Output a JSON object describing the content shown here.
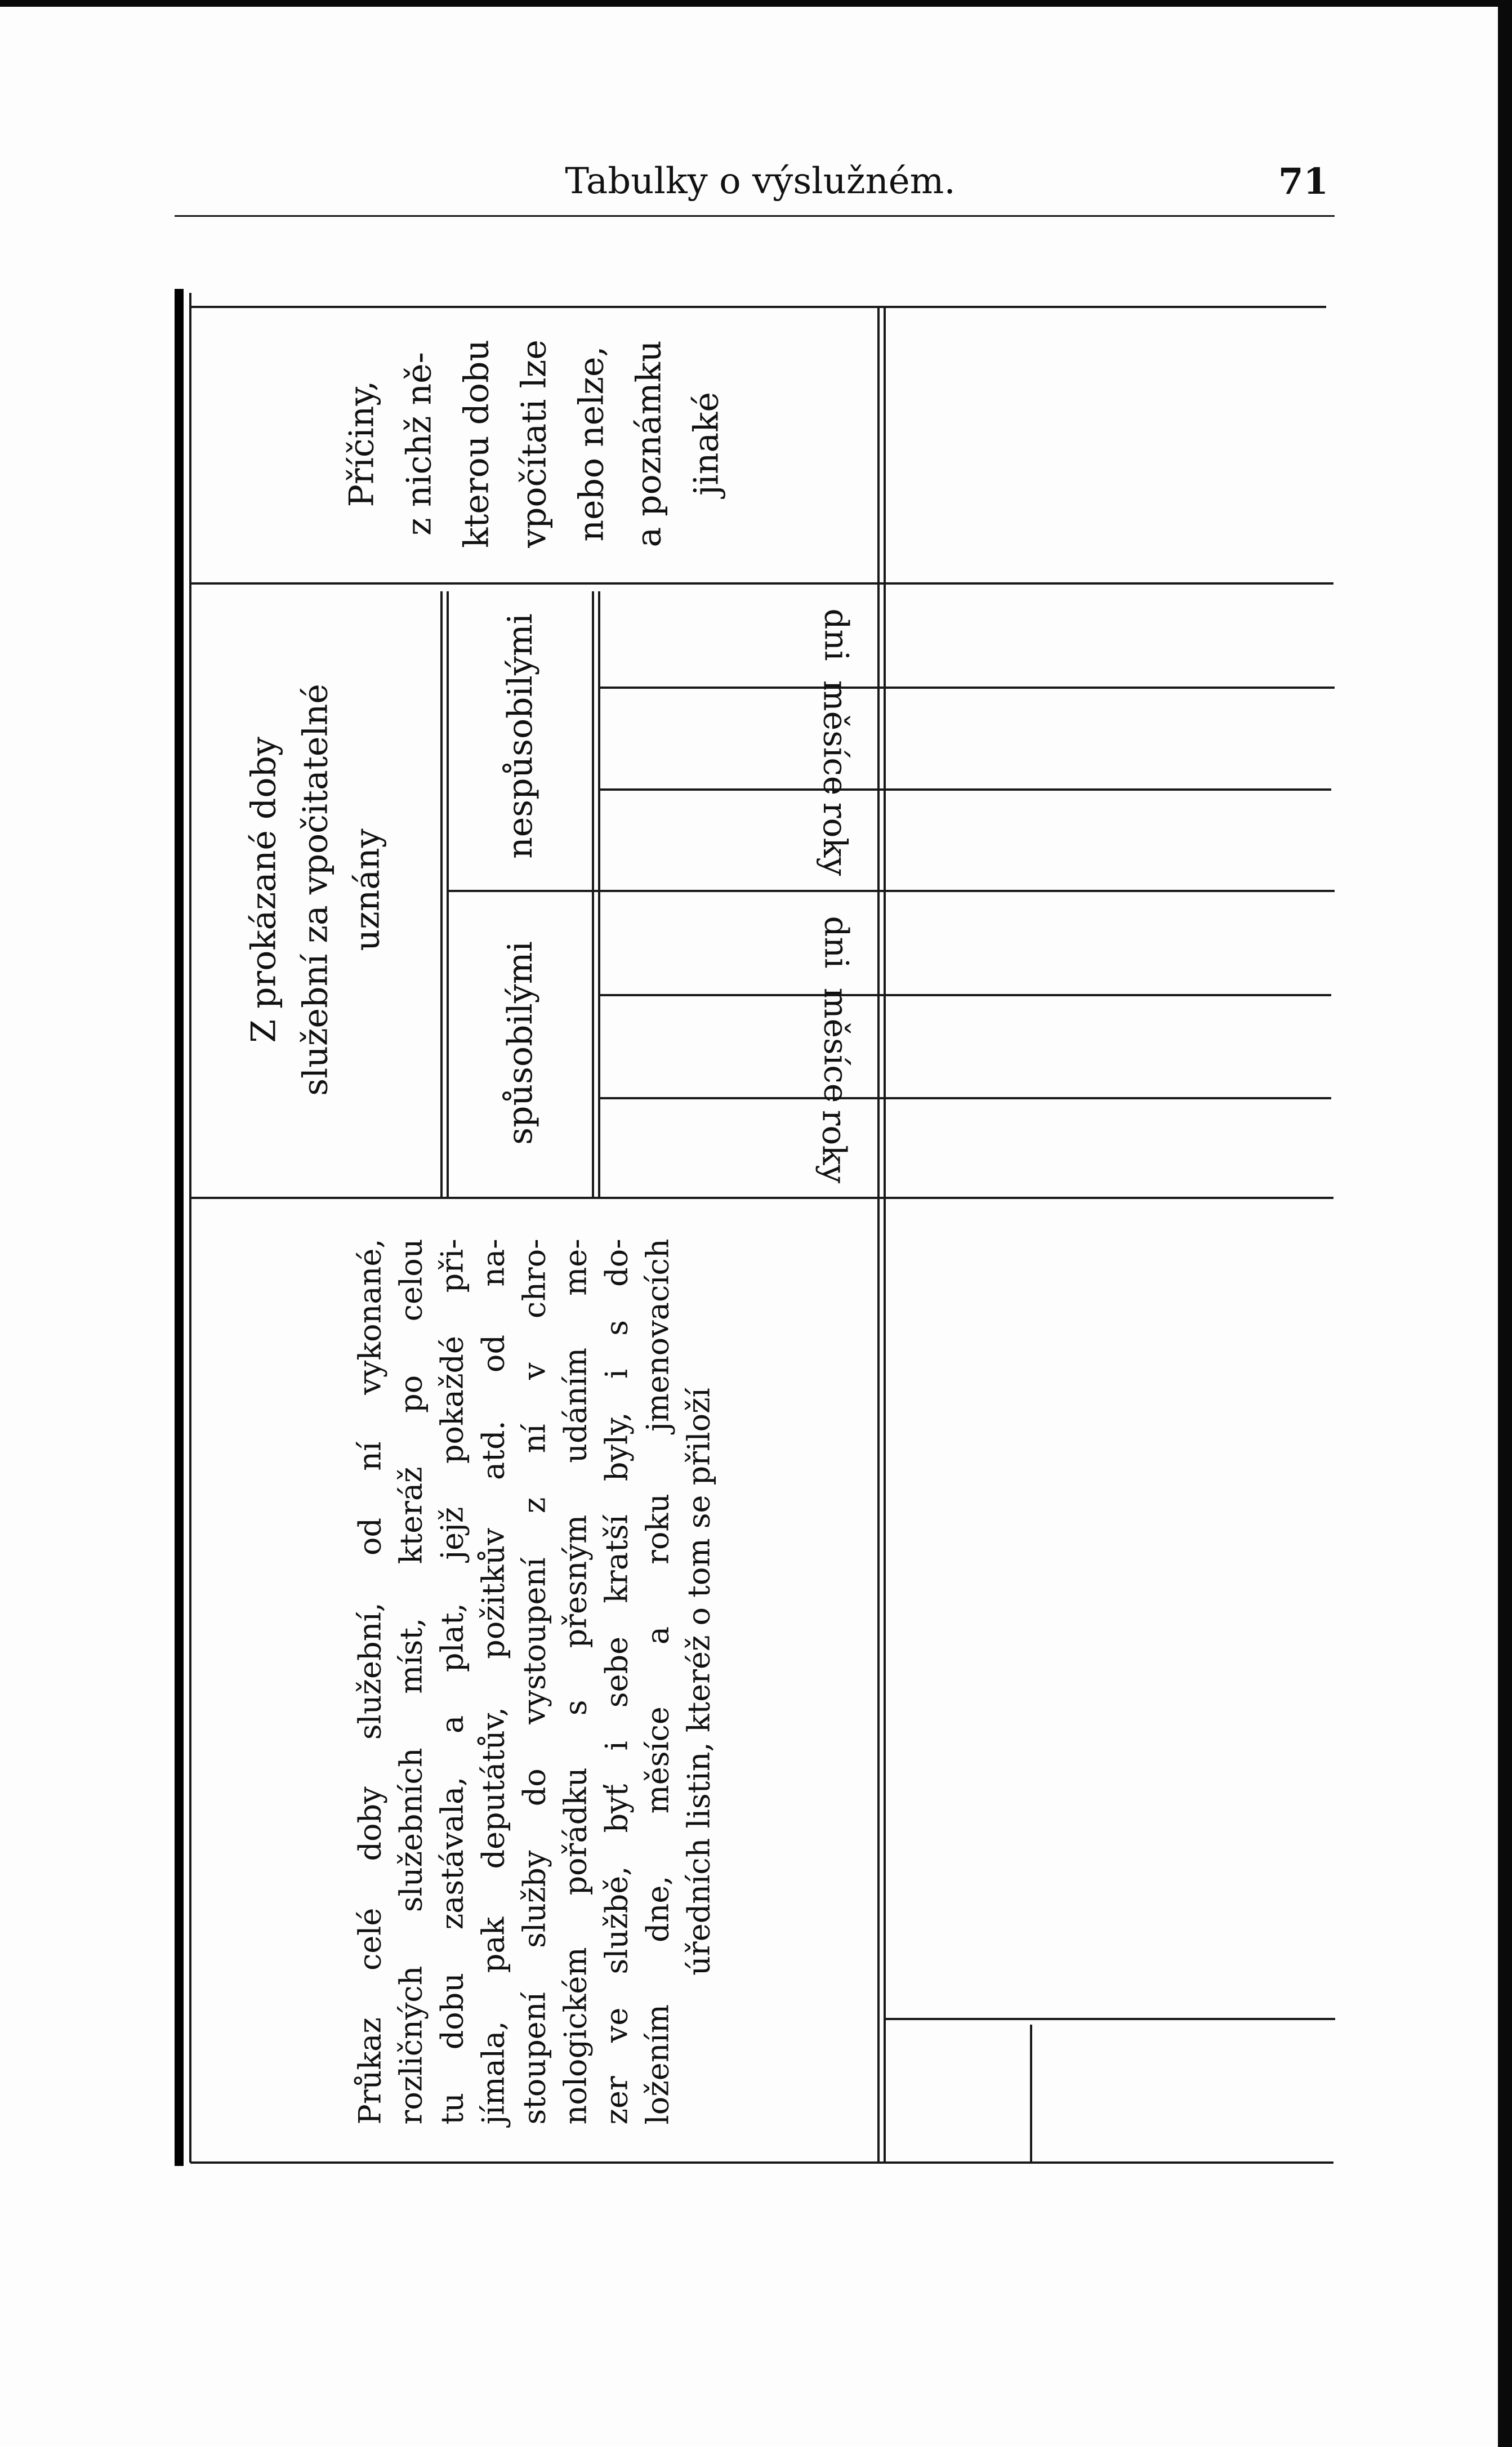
{
  "header": {
    "title": "Tabulky o výslužném.",
    "page_number": "71"
  },
  "table": {
    "reasons": {
      "lines": [
        "Příčiny,",
        "z nichž ně-",
        "kterou dobu",
        "vpočítati lze",
        "nebo nelze,",
        "a poznámku",
        "jinaké"
      ]
    },
    "recognized": {
      "lines": [
        "Z prokázané doby",
        "služební za vpočitatelné",
        "uznány"
      ],
      "unfit": {
        "label": "nespůsobilými",
        "units": [
          "dni",
          "měsíce",
          "roky"
        ]
      },
      "fit": {
        "label": "spůsobilými",
        "units": [
          "dni",
          "měsíce",
          "roky"
        ]
      }
    },
    "proof": {
      "lines": [
        "Průkaz celé doby služební, od ní vykonané,",
        "rozličných služebních míst, kteráž po celou",
        "tu dobu zastávala, a plat, jejž pokaždé při-",
        "jímala, pak deputátův, požitkův atd. od na-",
        "stoupení služby do vystoupení z ní v chro-",
        "nologickém pořádku s přesným udáním me-",
        "zer ve službě, byť i sebe kratší byly, i s do-",
        "ložením dne, měsíce a roku jmenovacích",
        "úředních listin, kteréž o tom se přiloží"
      ]
    }
  }
}
